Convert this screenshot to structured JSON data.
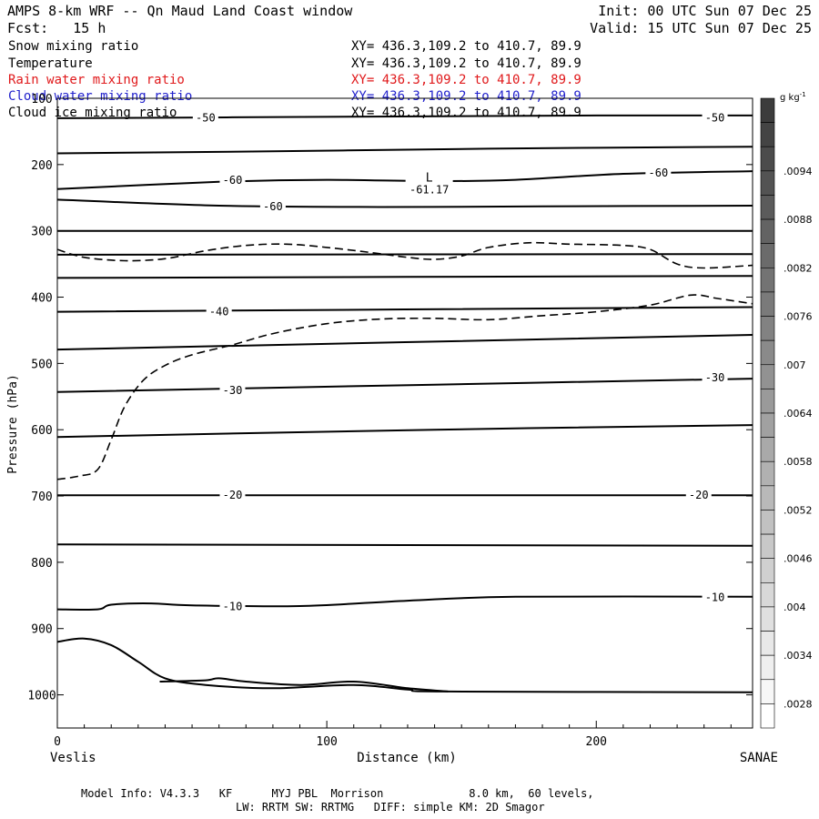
{
  "header": {
    "title": "AMPS 8-km WRF -- Qn Maud Land Coast window",
    "init": "Init: 00 UTC Sun 07 Dec 25",
    "fcst": "Fcst:   15 h",
    "valid": "Valid: 15 UTC Sun 07 Dec 25"
  },
  "fields": [
    {
      "name": "Snow mixing ratio",
      "xy": "XY= 436.3,109.2 to 410.7, 89.9",
      "color": "#000000"
    },
    {
      "name": "Temperature",
      "xy": "XY= 436.3,109.2 to 410.7, 89.9",
      "color": "#000000"
    },
    {
      "name": "Rain water mixing ratio",
      "xy": "XY= 436.3,109.2 to 410.7, 89.9",
      "color": "#e0191b"
    },
    {
      "name": "Cloud water mixing ratio",
      "xy": "XY= 436.3,109.2 to 410.7, 89.9",
      "color": "#2222cc"
    },
    {
      "name": "Cloud ice mixing ratio",
      "xy": "XY= 436.3,109.2 to 410.7, 89.9",
      "color": "#000000"
    }
  ],
  "footer": {
    "line1": "Model Info: V4.3.3   KF      MYJ PBL  Morrison             8.0 km,  60 levels,",
    "line2": "LW: RRTM SW: RRTMG   DIFF: simple KM: 2D Smagor"
  },
  "chart_data": {
    "type": "contour",
    "xlabel": "Distance (km)",
    "ylabel": "Pressure (hPa)",
    "xlim": [
      0,
      258
    ],
    "ylim": [
      1050,
      100
    ],
    "x_ticks": [
      0,
      100,
      200
    ],
    "y_ticks": [
      100,
      200,
      300,
      400,
      500,
      600,
      700,
      800,
      900,
      1000
    ],
    "endpoint_left": "Veslis",
    "endpoint_right": "SANAE",
    "colorbar": {
      "unit_label": "g kg",
      "unit_exp": "-1",
      "labels": [
        ".0094",
        ".0088",
        ".0082",
        ".0076",
        ".007",
        ".0064",
        ".0058",
        ".0052",
        ".0046",
        ".004",
        ".0034",
        ".0028"
      ],
      "levels": 26
    },
    "low_center": {
      "label": "L",
      "value": "-61.17",
      "x": 138,
      "p": 227
    },
    "isotherms": [
      {
        "points": [
          [
            0,
            130
          ],
          [
            100,
            128
          ],
          [
            200,
            126
          ],
          [
            258,
            126
          ]
        ]
      },
      {
        "points": [
          [
            0,
            183
          ],
          [
            80,
            180
          ],
          [
            160,
            176
          ],
          [
            258,
            173
          ]
        ]
      },
      {
        "points": [
          [
            0,
            237
          ],
          [
            60,
            226
          ],
          [
            100,
            223
          ],
          [
            140,
            225
          ],
          [
            170,
            223
          ],
          [
            210,
            214
          ],
          [
            258,
            210
          ]
        ]
      },
      {
        "points": [
          [
            0,
            253
          ],
          [
            60,
            262
          ],
          [
            120,
            264
          ],
          [
            180,
            263
          ],
          [
            258,
            262
          ]
        ]
      },
      {
        "points": [
          [
            0,
            300
          ],
          [
            258,
            300
          ]
        ]
      },
      {
        "points": [
          [
            0,
            336
          ],
          [
            258,
            335
          ]
        ]
      },
      {
        "points": [
          [
            0,
            371
          ],
          [
            258,
            368
          ]
        ]
      },
      {
        "points": [
          [
            0,
            422
          ],
          [
            258,
            415
          ]
        ]
      },
      {
        "points": [
          [
            0,
            479
          ],
          [
            258,
            457
          ]
        ]
      },
      {
        "points": [
          [
            0,
            543
          ],
          [
            140,
            532
          ],
          [
            258,
            523
          ]
        ]
      },
      {
        "points": [
          [
            0,
            611
          ],
          [
            140,
            600
          ],
          [
            258,
            593
          ]
        ]
      },
      {
        "points": [
          [
            0,
            699
          ],
          [
            258,
            699
          ]
        ]
      },
      {
        "points": [
          [
            0,
            773
          ],
          [
            258,
            775
          ]
        ]
      },
      {
        "points": [
          [
            0,
            871
          ],
          [
            15,
            871
          ],
          [
            20,
            864
          ],
          [
            35,
            862
          ],
          [
            50,
            865
          ],
          [
            90,
            866
          ],
          [
            130,
            858
          ],
          [
            170,
            852
          ],
          [
            258,
            852
          ]
        ]
      },
      {
        "points": [
          [
            0,
            920
          ],
          [
            10,
            915
          ],
          [
            20,
            925
          ],
          [
            30,
            950
          ],
          [
            40,
            975
          ],
          [
            55,
            985
          ],
          [
            80,
            990
          ],
          [
            110,
            985
          ],
          [
            130,
            992
          ],
          [
            145,
            995
          ],
          [
            258,
            996
          ]
        ]
      },
      {
        "points": [
          [
            38,
            980
          ],
          [
            55,
            978
          ],
          [
            60,
            975
          ],
          [
            70,
            980
          ],
          [
            90,
            985
          ],
          [
            110,
            980
          ],
          [
            130,
            990
          ],
          [
            145,
            995
          ]
        ]
      }
    ],
    "contour_labels": [
      {
        "text": "-50",
        "x": 55,
        "p": 129
      },
      {
        "text": "-50",
        "x": 244,
        "p": 129
      },
      {
        "text": "-60",
        "x": 65,
        "p": 223
      },
      {
        "text": "-60",
        "x": 223,
        "p": 212
      },
      {
        "text": "-60",
        "x": 80,
        "p": 263
      },
      {
        "text": "-40",
        "x": 60,
        "p": 421
      },
      {
        "text": "-30",
        "x": 65,
        "p": 540
      },
      {
        "text": "-30",
        "x": 244,
        "p": 521
      },
      {
        "text": "-20",
        "x": 65,
        "p": 698
      },
      {
        "text": "-20",
        "x": 238,
        "p": 698
      },
      {
        "text": "-10",
        "x": 65,
        "p": 866
      },
      {
        "text": "-10",
        "x": 244,
        "p": 852
      }
    ],
    "dashed": [
      {
        "points": [
          [
            0,
            328
          ],
          [
            10,
            340
          ],
          [
            25,
            345
          ],
          [
            40,
            342
          ],
          [
            55,
            330
          ],
          [
            70,
            322
          ],
          [
            85,
            320
          ],
          [
            100,
            325
          ],
          [
            115,
            332
          ],
          [
            130,
            340
          ],
          [
            140,
            343
          ],
          [
            150,
            338
          ],
          [
            160,
            325
          ],
          [
            175,
            318
          ],
          [
            190,
            320
          ],
          [
            210,
            322
          ],
          [
            220,
            328
          ],
          [
            230,
            350
          ],
          [
            240,
            356
          ],
          [
            258,
            352
          ]
        ]
      },
      {
        "points": [
          [
            0,
            675
          ],
          [
            8,
            670
          ],
          [
            15,
            660
          ],
          [
            20,
            615
          ],
          [
            25,
            565
          ],
          [
            32,
            525
          ],
          [
            40,
            503
          ],
          [
            50,
            487
          ],
          [
            65,
            472
          ],
          [
            80,
            455
          ],
          [
            100,
            440
          ],
          [
            120,
            433
          ],
          [
            140,
            432
          ],
          [
            160,
            434
          ],
          [
            180,
            428
          ],
          [
            200,
            422
          ],
          [
            220,
            412
          ],
          [
            235,
            397
          ],
          [
            245,
            402
          ],
          [
            258,
            410
          ]
        ]
      }
    ]
  }
}
